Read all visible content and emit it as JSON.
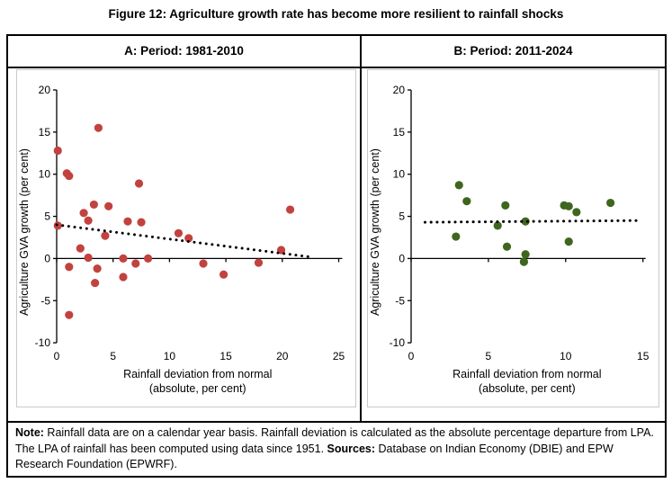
{
  "figure": {
    "title": "Figure 12: Agriculture growth rate has become more resilient to rainfall shocks"
  },
  "panels": [
    {
      "header": "A: Period: 1981-2010"
    },
    {
      "header": "B: Period: 2011-2024"
    }
  ],
  "note": {
    "note_label": "Note:",
    "note_text": " Rainfall data are on a calendar year basis. Rainfall deviation is calculated as the absolute percentage departure from LPA. The LPA of rainfall has been computed using data since 1951. ",
    "sources_label": "Sources:",
    "sources_text": " Database on Indian Economy (DBIE) and EPW Research Foundation (EPWRF)."
  },
  "chart_data": [
    {
      "type": "scatter",
      "title": "A: Period: 1981-2010",
      "xlabel": "Rainfall deviation from normal\n(absolute, per cent)",
      "ylabel": "Agriculture GVA growth (per cent)",
      "xlim": [
        0,
        25
      ],
      "ylim": [
        -10,
        20
      ],
      "xticks": [
        0,
        5,
        10,
        15,
        20,
        25
      ],
      "yticks": [
        20,
        15,
        10,
        5,
        0,
        -5,
        -10
      ],
      "grid": false,
      "legend": "none",
      "point_color": "#c2423f",
      "points": [
        [
          0.1,
          12.8
        ],
        [
          3.7,
          15.5
        ],
        [
          0.9,
          10.1
        ],
        [
          1.1,
          9.8
        ],
        [
          7.3,
          8.9
        ],
        [
          3.3,
          6.4
        ],
        [
          4.6,
          6.2
        ],
        [
          2.4,
          5.4
        ],
        [
          2.8,
          4.5
        ],
        [
          6.3,
          4.4
        ],
        [
          7.5,
          4.3
        ],
        [
          0.1,
          3.9
        ],
        [
          4.3,
          2.7
        ],
        [
          10.8,
          3.0
        ],
        [
          11.7,
          2.4
        ],
        [
          2.1,
          1.2
        ],
        [
          2.8,
          0.1
        ],
        [
          1.1,
          -1.0
        ],
        [
          3.6,
          -1.2
        ],
        [
          3.4,
          -2.9
        ],
        [
          5.9,
          0.0
        ],
        [
          5.9,
          -2.2
        ],
        [
          7.0,
          -0.6
        ],
        [
          8.1,
          0.0
        ],
        [
          13.0,
          -0.6
        ],
        [
          14.8,
          -1.9
        ],
        [
          17.9,
          -0.5
        ],
        [
          1.1,
          -6.7
        ],
        [
          19.9,
          1.0
        ],
        [
          20.7,
          5.8
        ]
      ],
      "trendline": {
        "style": "dotted",
        "color": "#000000",
        "x1": 0,
        "y1": 4.0,
        "x2": 22.7,
        "y2": 0.15
      }
    },
    {
      "type": "scatter",
      "title": "B: Period: 2011-2024",
      "xlabel": "Rainfall deviation from normal\n(absolute, per cent)",
      "ylabel": "Agriculture GVA growth (per cent)",
      "xlim": [
        0,
        15
      ],
      "ylim": [
        -10,
        20
      ],
      "xticks": [
        0,
        5,
        10,
        15
      ],
      "yticks": [
        20,
        15,
        10,
        5,
        0,
        -5,
        -10
      ],
      "grid": false,
      "legend": "none",
      "point_color": "#3f661e",
      "points": [
        [
          3.1,
          8.7
        ],
        [
          3.6,
          6.8
        ],
        [
          2.9,
          2.6
        ],
        [
          6.1,
          6.3
        ],
        [
          5.6,
          3.9
        ],
        [
          6.2,
          1.4
        ],
        [
          7.4,
          4.4
        ],
        [
          7.4,
          0.5
        ],
        [
          7.3,
          -0.4
        ],
        [
          9.9,
          6.3
        ],
        [
          10.2,
          6.2
        ],
        [
          10.7,
          5.5
        ],
        [
          10.2,
          2.0
        ],
        [
          12.9,
          6.6
        ]
      ],
      "trendline": {
        "style": "dotted",
        "color": "#000000",
        "x1": 0.9,
        "y1": 4.3,
        "x2": 14.6,
        "y2": 4.5
      }
    }
  ]
}
